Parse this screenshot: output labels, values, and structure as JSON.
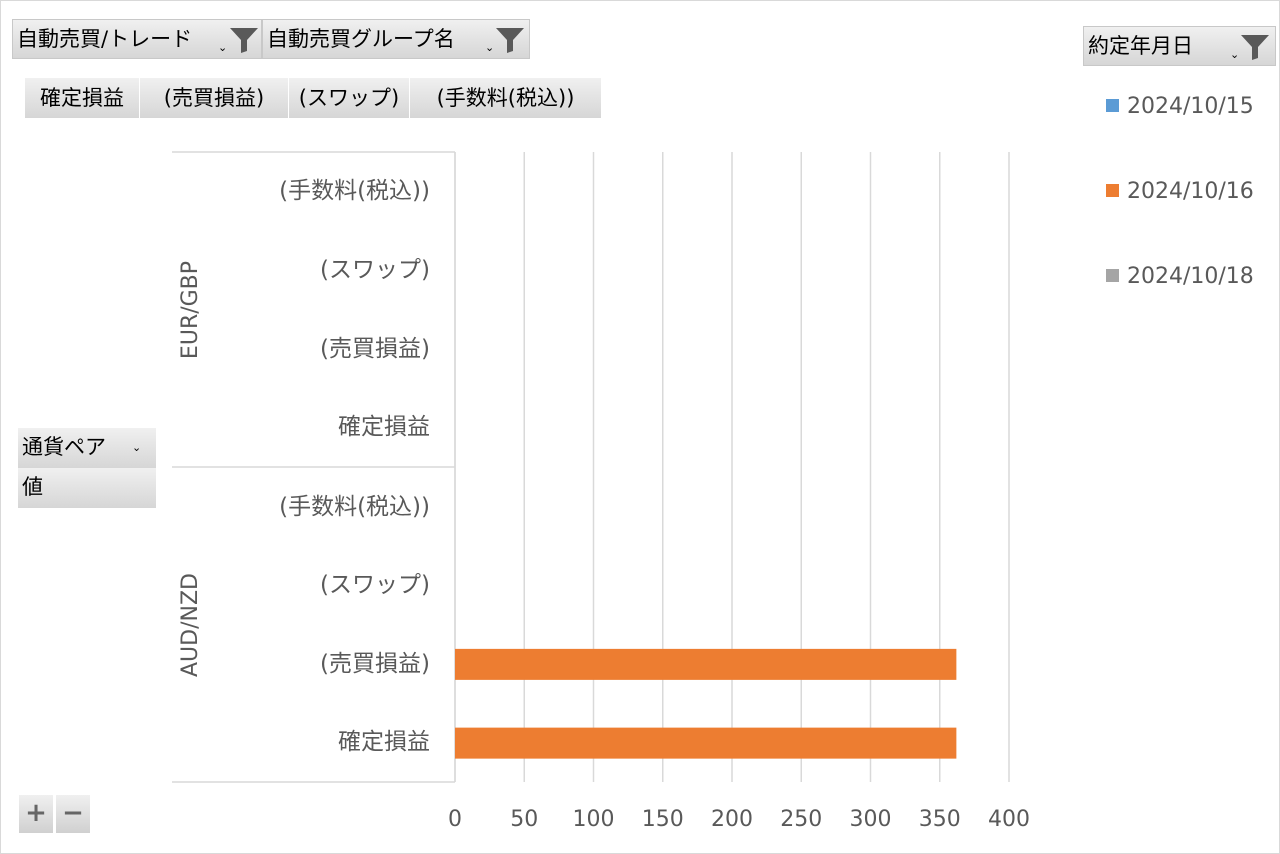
{
  "filters": {
    "auto_trade": "自動売買/トレード",
    "auto_group": "自動売買グループ名",
    "date": "約定年月日"
  },
  "value_tabs": [
    "確定損益",
    "(売買損益)",
    "(スワップ)",
    "(手数料(税込))"
  ],
  "row_fields": {
    "currency_pair": "通貨ペア",
    "values": "値"
  },
  "plus_label": "+",
  "minus_label": "−",
  "colors": {
    "2024/10/15": "#5b9bd5",
    "2024/10/16": "#ed7d31",
    "2024/10/18": "#a5a5a5"
  },
  "chart_data": {
    "type": "bar",
    "orientation": "horizontal",
    "groups": [
      {
        "name": "EUR/GBP",
        "categories": [
          "(手数料(税込))",
          "(スワップ)",
          "(売買損益)",
          "確定損益"
        ]
      },
      {
        "name": "AUD/NZD",
        "categories": [
          "(手数料(税込))",
          "(スワップ)",
          "(売買損益)",
          "確定損益"
        ]
      }
    ],
    "series": [
      {
        "name": "2024/10/15",
        "values": [
          0,
          0,
          0,
          0,
          0,
          0,
          0,
          0
        ]
      },
      {
        "name": "2024/10/16",
        "values": [
          0,
          0,
          0,
          0,
          0,
          0,
          362,
          362
        ]
      },
      {
        "name": "2024/10/18",
        "values": [
          0,
          0,
          0,
          0,
          0,
          0,
          0,
          0
        ]
      }
    ],
    "xlim": [
      0,
      400
    ],
    "xticks": [
      "0",
      "50",
      "100",
      "150",
      "200",
      "250",
      "300",
      "350",
      "400"
    ],
    "grid": true,
    "legend": "right"
  }
}
